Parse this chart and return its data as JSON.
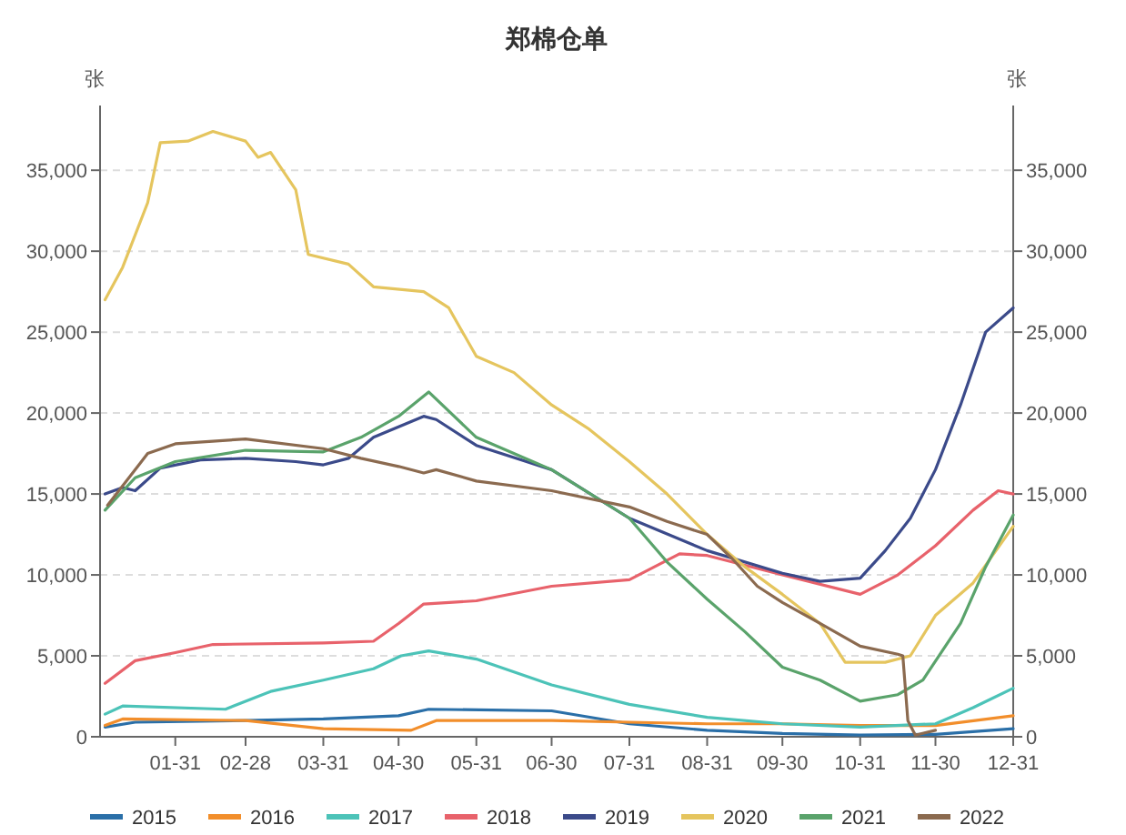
{
  "chart_data": {
    "type": "line",
    "title": "郑棉仓单",
    "ylabel": "张",
    "y2label": "张",
    "xlim": [
      "--01-01",
      "--12-31"
    ],
    "xticks": [
      {
        "value": "--01-31",
        "label": "01-31"
      },
      {
        "value": "--02-28",
        "label": "02-28"
      },
      {
        "value": "--03-31",
        "label": "03-31"
      },
      {
        "value": "--04-30",
        "label": "04-30"
      },
      {
        "value": "--05-31",
        "label": "05-31"
      },
      {
        "value": "--06-30",
        "label": "06-30"
      },
      {
        "value": "--07-31",
        "label": "07-31"
      },
      {
        "value": "--08-31",
        "label": "08-31"
      },
      {
        "value": "--09-30",
        "label": "09-30"
      },
      {
        "value": "--10-31",
        "label": "10-31"
      },
      {
        "value": "--11-30",
        "label": "11-30"
      },
      {
        "value": "--12-31",
        "label": "12-31"
      }
    ],
    "ylim": [
      0,
      39000
    ],
    "yticks": [
      {
        "value": 0,
        "label": "0"
      },
      {
        "value": 5000,
        "label": "5,000"
      },
      {
        "value": 10000,
        "label": "10,000"
      },
      {
        "value": 15000,
        "label": "15,000"
      },
      {
        "value": 20000,
        "label": "20,000"
      },
      {
        "value": 25000,
        "label": "25,000"
      },
      {
        "value": 30000,
        "label": "30,000"
      },
      {
        "value": 35000,
        "label": "35,000"
      }
    ],
    "y2lim": [
      0,
      39000
    ],
    "y2ticks": [
      {
        "value": 0,
        "label": "0"
      },
      {
        "value": 5000,
        "label": "5,000"
      },
      {
        "value": 10000,
        "label": "10,000"
      },
      {
        "value": 15000,
        "label": "15,000"
      },
      {
        "value": 20000,
        "label": "20,000"
      },
      {
        "value": 25000,
        "label": "25,000"
      },
      {
        "value": 30000,
        "label": "30,000"
      },
      {
        "value": 35000,
        "label": "35,000"
      }
    ],
    "grid": "y",
    "legend": "bottom",
    "marker": "none",
    "line_style": "solid",
    "series": [
      {
        "name": "2015",
        "color": "#2a6fa8",
        "x": [
          "--01-03",
          "--01-15",
          "--02-28",
          "--03-31",
          "--04-30",
          "--05-12",
          "--06-30",
          "--07-31",
          "--08-31",
          "--09-30",
          "--10-31",
          "--11-30",
          "--12-31"
        ],
        "values": [
          600,
          900,
          1000,
          1100,
          1300,
          1700,
          1600,
          800,
          400,
          200,
          100,
          150,
          500
        ]
      },
      {
        "name": "2016",
        "color": "#f28e2b",
        "x": [
          "--01-03",
          "--01-10",
          "--02-28",
          "--03-31",
          "--05-05",
          "--05-15",
          "--06-30",
          "--07-31",
          "--08-31",
          "--09-30",
          "--10-31",
          "--11-30",
          "--12-31"
        ],
        "values": [
          700,
          1100,
          1000,
          500,
          400,
          1000,
          1000,
          900,
          800,
          800,
          700,
          700,
          1300
        ]
      },
      {
        "name": "2017",
        "color": "#4cc3b8",
        "x": [
          "--01-03",
          "--01-10",
          "--02-20",
          "--03-10",
          "--03-31",
          "--04-20",
          "--05-01",
          "--05-12",
          "--05-31",
          "--06-30",
          "--07-31",
          "--08-31",
          "--09-30",
          "--10-31",
          "--11-30",
          "--12-15",
          "--12-31"
        ],
        "values": [
          1400,
          1900,
          1700,
          2800,
          3500,
          4200,
          5000,
          5300,
          4800,
          3200,
          2000,
          1200,
          800,
          600,
          800,
          1800,
          3000
        ]
      },
      {
        "name": "2018",
        "color": "#e8626b",
        "x": [
          "--01-03",
          "--01-15",
          "--01-31",
          "--02-15",
          "--03-31",
          "--04-20",
          "--04-30",
          "--05-10",
          "--05-31",
          "--06-30",
          "--07-31",
          "--08-20",
          "--08-31",
          "--09-30",
          "--10-31",
          "--11-15",
          "--11-30",
          "--12-15",
          "--12-25",
          "--12-31"
        ],
        "values": [
          3300,
          4700,
          5200,
          5700,
          5800,
          5900,
          7000,
          8200,
          8400,
          9300,
          9700,
          11300,
          11200,
          10000,
          8800,
          10000,
          11800,
          14000,
          15200,
          15000
        ]
      },
      {
        "name": "2019",
        "color": "#3b4a8a",
        "x": [
          "--01-03",
          "--01-10",
          "--01-15",
          "--01-25",
          "--02-10",
          "--02-28",
          "--03-20",
          "--03-31",
          "--04-10",
          "--04-20",
          "--05-10",
          "--05-15",
          "--05-31",
          "--06-30",
          "--07-31",
          "--08-31",
          "--09-30",
          "--10-15",
          "--10-31",
          "--11-10",
          "--11-20",
          "--11-30",
          "--12-10",
          "--12-20",
          "--12-31"
        ],
        "values": [
          15000,
          15400,
          15200,
          16600,
          17100,
          17200,
          17000,
          16800,
          17200,
          18500,
          19800,
          19600,
          18000,
          16500,
          13500,
          11500,
          10100,
          9600,
          9800,
          11500,
          13500,
          16500,
          20500,
          25000,
          26500
        ]
      },
      {
        "name": "2020",
        "color": "#e5c55e",
        "x": [
          "--01-03",
          "--01-10",
          "--01-20",
          "--01-25",
          "--02-05",
          "--02-15",
          "--02-28",
          "--03-05",
          "--03-10",
          "--03-20",
          "--03-25",
          "--04-10",
          "--04-20",
          "--05-10",
          "--05-20",
          "--05-31",
          "--06-15",
          "--06-30",
          "--07-15",
          "--07-31",
          "--08-15",
          "--08-31",
          "--09-15",
          "--09-30",
          "--10-15",
          "--10-25",
          "--11-10",
          "--11-20",
          "--11-30",
          "--12-15",
          "--12-31"
        ],
        "values": [
          27000,
          29000,
          33000,
          36700,
          36800,
          37400,
          36800,
          35800,
          36100,
          33800,
          29800,
          29200,
          27800,
          27500,
          26500,
          23500,
          22500,
          20500,
          19000,
          17000,
          15000,
          12500,
          10500,
          8800,
          7000,
          4600,
          4600,
          5000,
          7500,
          9500,
          13000
        ]
      },
      {
        "name": "2021",
        "color": "#5aa36b",
        "x": [
          "--01-03",
          "--01-15",
          "--01-31",
          "--02-28",
          "--03-31",
          "--04-15",
          "--04-30",
          "--05-12",
          "--05-31",
          "--06-30",
          "--07-31",
          "--08-15",
          "--08-31",
          "--09-15",
          "--09-30",
          "--10-15",
          "--10-31",
          "--11-15",
          "--11-25",
          "--12-10",
          "--12-20",
          "--12-31"
        ],
        "values": [
          14000,
          16000,
          17000,
          17700,
          17600,
          18500,
          19800,
          21300,
          18500,
          16500,
          13500,
          10800,
          8500,
          6500,
          4300,
          3500,
          2200,
          2600,
          3500,
          7000,
          10500,
          13700
        ]
      },
      {
        "name": "2022",
        "color": "#8b6a4f",
        "x": [
          "--01-04",
          "--01-20",
          "--01-31",
          "--02-28",
          "--03-31",
          "--04-15",
          "--04-30",
          "--05-10",
          "--05-15",
          "--05-31",
          "--06-30",
          "--07-31",
          "--08-15",
          "--08-31",
          "--09-10",
          "--09-20",
          "--09-30",
          "--10-15",
          "--10-31",
          "--11-15",
          "--11-17",
          "--11-19",
          "--11-22",
          "--11-30"
        ],
        "values": [
          14300,
          17500,
          18100,
          18400,
          17800,
          17200,
          16700,
          16300,
          16500,
          15800,
          15200,
          14200,
          13300,
          12500,
          11000,
          9300,
          8300,
          7000,
          5600,
          5100,
          5000,
          1000,
          100,
          400
        ]
      }
    ]
  }
}
